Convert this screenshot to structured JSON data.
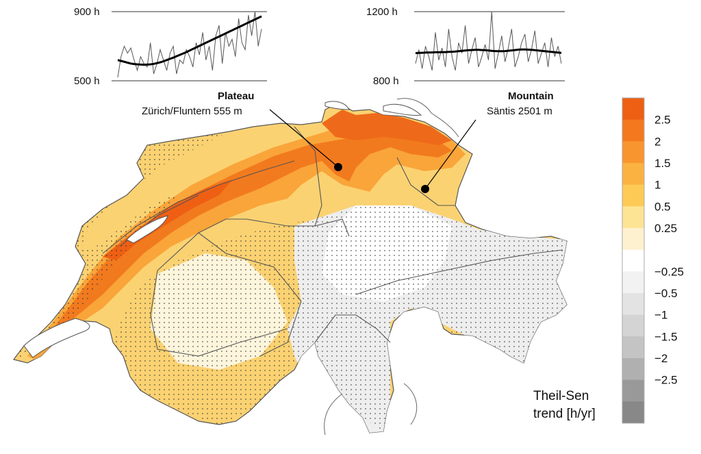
{
  "plots": [
    {
      "key": "plateau",
      "title": "Plateau",
      "subtitle": "Zürich/Fluntern 555 m",
      "y_top_label": "900 h",
      "y_bottom_label": "500 h",
      "ylim": [
        500,
        900
      ],
      "annual": [
        520,
        640,
        700,
        660,
        690,
        620,
        560,
        640,
        600,
        580,
        720,
        540,
        600,
        680,
        620,
        560,
        660,
        700,
        540,
        620,
        600,
        680,
        640,
        580,
        720,
        650,
        780,
        620,
        700,
        560,
        760,
        820,
        600,
        780,
        700,
        740,
        640,
        860,
        720,
        680,
        880,
        760,
        900,
        700,
        800
      ],
      "smooth": [
        620,
        615,
        610,
        605,
        600,
        597,
        595,
        594,
        593,
        594,
        595,
        598,
        602,
        607,
        613,
        620,
        627,
        634,
        642,
        650,
        658,
        666,
        675,
        684,
        693,
        702,
        711,
        720,
        729,
        738,
        747,
        756,
        765,
        774,
        783,
        792,
        801,
        810,
        819,
        828,
        837,
        846,
        855,
        864,
        873
      ]
    },
    {
      "key": "mountain",
      "title": "Mountain",
      "subtitle": "Säntis 2501 m",
      "y_top_label": "1200 h",
      "y_bottom_label": "800 h",
      "ylim": [
        800,
        1200
      ],
      "annual": [
        900,
        980,
        870,
        1000,
        940,
        860,
        1080,
        920,
        990,
        880,
        1100,
        940,
        860,
        1020,
        960,
        1120,
        900,
        980,
        1050,
        880,
        940,
        1010,
        920,
        1200,
        870,
        960,
        1060,
        910,
        990,
        1100,
        880,
        940,
        1020,
        1070,
        910,
        980,
        1090,
        900,
        960,
        1020,
        880,
        1050,
        940,
        1000,
        900
      ],
      "smooth": [
        960,
        961,
        962,
        963,
        964,
        964,
        965,
        965,
        966,
        966,
        967,
        968,
        969,
        971,
        973,
        975,
        977,
        978,
        979,
        979,
        978,
        977,
        975,
        973,
        972,
        971,
        971,
        972,
        974,
        976,
        978,
        980,
        981,
        981,
        980,
        979,
        977,
        975,
        973,
        971,
        969,
        967,
        965,
        963,
        961
      ]
    }
  ],
  "legend": {
    "title_line1": "Theil-Sen",
    "title_line2": "trend [h/yr]",
    "labels": [
      "2.5",
      "2",
      "1.5",
      "1",
      "0.5",
      "0.25",
      "−0.25",
      "−0.5",
      "−1",
      "−1.5",
      "−2",
      "−2.5"
    ],
    "colors": [
      "#ee5f14",
      "#f4781d",
      "#f9952f",
      "#fbb240",
      "#fdcb55",
      "#fde394",
      "#fdf1cf",
      "#ffffff",
      "#f2f2f2",
      "#e3e3e3",
      "#d4d4d4",
      "#c4c4c4",
      "#b0b0b0",
      "#999999",
      "#888888"
    ]
  },
  "colors": {
    "orange_strong": "#ee6a1a",
    "orange": "#f58a2a",
    "orange_light": "#f9a53a",
    "yellow": "#fbc84c",
    "yellow_light": "#fde08a",
    "cream": "#fdf2d2",
    "grey_light": "#eeeeee",
    "lake": "#ffffff",
    "border": "#555555"
  }
}
